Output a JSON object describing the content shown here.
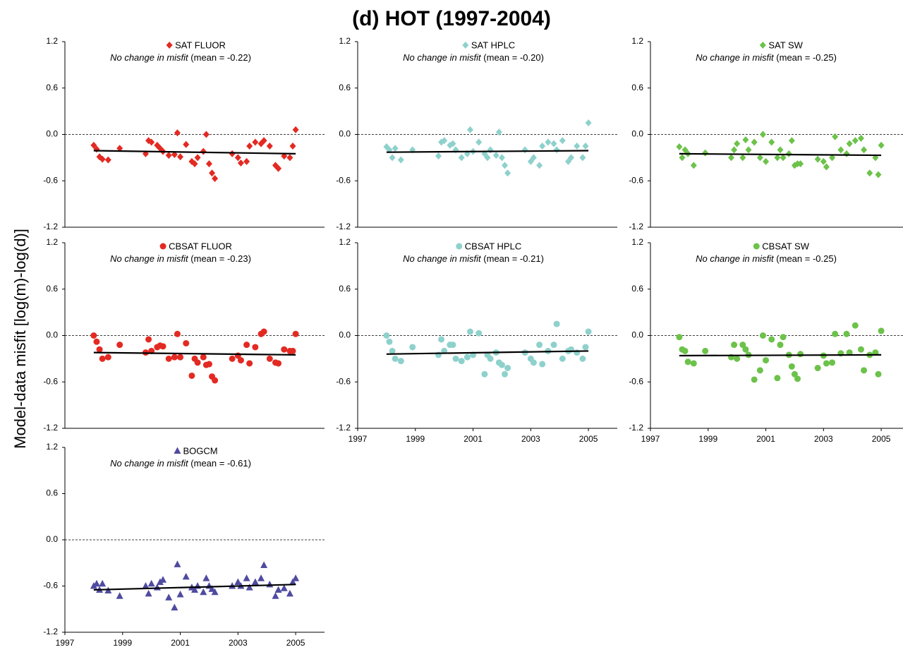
{
  "title": "(d) HOT (1997-2004)",
  "ylabel": "Model-data misfit [log(m)-log(d)]",
  "chart_data": [
    {
      "type": "scatter",
      "marker": "diamond",
      "annotation": "No change in misfit",
      "mean_label": "(mean = -0.22)",
      "xlim": [
        1997,
        2006
      ],
      "ylim": [
        -1.2,
        1.2
      ],
      "yticks": [
        1.2,
        0.6,
        {
          "value": 0,
          "label": "0.0"
        },
        -0.6,
        -1.2
      ],
      "zero_line": true,
      "x": [
        1998.0,
        1998.1,
        1998.2,
        1998.3,
        1998.5,
        1998.9,
        1999.8,
        1999.9,
        2000.0,
        2000.2,
        2000.3,
        2000.4,
        2000.6,
        2000.8,
        2000.9,
        2001.0,
        2001.2,
        2001.4,
        2001.5,
        2001.6,
        2001.8,
        2001.9,
        2002.0,
        2002.1,
        2002.2,
        2002.8,
        2003.0,
        2003.1,
        2003.3,
        2003.4,
        2003.6,
        2003.8,
        2003.9,
        2004.1,
        2004.3,
        2004.4,
        2004.6,
        2004.8,
        2004.9,
        2005.0
      ],
      "series": [
        {
          "name": "SAT FLUOR",
          "color": "#e32a22",
          "values": [
            -0.14,
            -0.19,
            -0.29,
            -0.32,
            -0.33,
            -0.18,
            -0.25,
            -0.08,
            -0.1,
            -0.14,
            -0.18,
            -0.22,
            -0.27,
            -0.26,
            0.02,
            -0.29,
            -0.13,
            -0.35,
            -0.38,
            -0.3,
            -0.22,
            0.0,
            -0.38,
            -0.5,
            -0.57,
            -0.25,
            -0.3,
            -0.37,
            -0.35,
            -0.15,
            -0.1,
            -0.12,
            -0.08,
            -0.15,
            -0.4,
            -0.44,
            -0.28,
            -0.3,
            -0.15,
            0.06
          ]
        }
      ],
      "trend": {
        "x": [
          1998,
          2005
        ],
        "values": [
          -0.21,
          -0.25
        ]
      }
    },
    {
      "type": "scatter",
      "marker": "diamond",
      "annotation": "No change in misfit",
      "mean_label": "(mean = -0.20)",
      "xlim": [
        1997,
        2006
      ],
      "ylim": [
        -1.2,
        1.2
      ],
      "yticks": [
        1.2,
        0.6,
        {
          "value": 0,
          "label": "0.0"
        },
        -0.6,
        -1.2
      ],
      "zero_line": true,
      "x": [
        1998.0,
        1998.1,
        1998.2,
        1998.3,
        1998.5,
        1998.9,
        1999.8,
        1999.9,
        2000.0,
        2000.2,
        2000.3,
        2000.4,
        2000.6,
        2000.8,
        2000.9,
        2001.0,
        2001.2,
        2001.4,
        2001.5,
        2001.6,
        2001.8,
        2001.9,
        2002.0,
        2002.1,
        2002.2,
        2002.8,
        2003.0,
        2003.1,
        2003.3,
        2003.4,
        2003.6,
        2003.8,
        2003.9,
        2004.1,
        2004.3,
        2004.4,
        2004.6,
        2004.8,
        2004.9,
        2005.0
      ],
      "series": [
        {
          "name": "SAT HPLC",
          "color": "#8ed1cc",
          "values": [
            -0.16,
            -0.2,
            -0.3,
            -0.18,
            -0.33,
            -0.2,
            -0.28,
            -0.1,
            -0.08,
            -0.14,
            -0.12,
            -0.2,
            -0.3,
            -0.25,
            0.06,
            -0.22,
            -0.1,
            -0.25,
            -0.3,
            -0.2,
            -0.27,
            0.03,
            -0.3,
            -0.4,
            -0.5,
            -0.2,
            -0.35,
            -0.3,
            -0.4,
            -0.15,
            -0.1,
            -0.12,
            -0.2,
            -0.08,
            -0.35,
            -0.3,
            -0.15,
            -0.3,
            -0.15,
            0.15
          ]
        }
      ],
      "trend": {
        "x": [
          1998,
          2005
        ],
        "values": [
          -0.23,
          -0.21
        ]
      }
    },
    {
      "type": "scatter",
      "marker": "diamond",
      "annotation": "No change in misfit",
      "mean_label": "(mean = -0.25)",
      "xlim": [
        1997,
        2006
      ],
      "ylim": [
        -1.2,
        1.2
      ],
      "yticks": [
        1.2,
        0.6,
        {
          "value": 0,
          "label": "0.0"
        },
        -0.6,
        -1.2
      ],
      "zero_line": true,
      "x": [
        1998.0,
        1998.1,
        1998.2,
        1998.3,
        1998.5,
        1998.9,
        1999.8,
        1999.9,
        2000.0,
        2000.2,
        2000.3,
        2000.4,
        2000.6,
        2000.8,
        2000.9,
        2001.0,
        2001.2,
        2001.4,
        2001.5,
        2001.6,
        2001.8,
        2001.9,
        2002.0,
        2002.1,
        2002.2,
        2002.8,
        2003.0,
        2003.1,
        2003.3,
        2003.4,
        2003.6,
        2003.8,
        2003.9,
        2004.1,
        2004.3,
        2004.4,
        2004.6,
        2004.8,
        2004.9,
        2005.0
      ],
      "series": [
        {
          "name": "SAT SW",
          "color": "#6cc24a",
          "values": [
            -0.16,
            -0.3,
            -0.2,
            -0.25,
            -0.4,
            -0.24,
            -0.3,
            -0.2,
            -0.12,
            -0.3,
            -0.07,
            -0.2,
            -0.1,
            -0.3,
            0.0,
            -0.35,
            -0.1,
            -0.3,
            -0.2,
            -0.3,
            -0.25,
            -0.08,
            -0.4,
            -0.38,
            -0.38,
            -0.32,
            -0.35,
            -0.42,
            -0.3,
            -0.03,
            -0.2,
            -0.25,
            -0.12,
            -0.08,
            -0.05,
            -0.2,
            -0.5,
            -0.3,
            -0.52,
            -0.14
          ]
        }
      ],
      "trend": {
        "x": [
          1998,
          2005
        ],
        "values": [
          -0.25,
          -0.27
        ]
      }
    },
    {
      "type": "scatter",
      "marker": "circle",
      "annotation": "No change in misfit",
      "mean_label": "(mean = -0.23)",
      "xlim": [
        1997,
        2006
      ],
      "ylim": [
        -1.2,
        1.2
      ],
      "yticks": [
        1.2,
        0.6,
        {
          "value": 0,
          "label": "0.0"
        },
        -0.6,
        -1.2
      ],
      "zero_line": true,
      "x": [
        1998.0,
        1998.1,
        1998.2,
        1998.3,
        1998.5,
        1998.9,
        1999.8,
        1999.9,
        2000.0,
        2000.2,
        2000.3,
        2000.4,
        2000.6,
        2000.8,
        2000.9,
        2001.0,
        2001.2,
        2001.4,
        2001.5,
        2001.6,
        2001.8,
        2001.9,
        2002.0,
        2002.1,
        2002.2,
        2002.8,
        2003.0,
        2003.1,
        2003.3,
        2003.4,
        2003.6,
        2003.8,
        2003.9,
        2004.1,
        2004.3,
        2004.4,
        2004.6,
        2004.8,
        2004.9,
        2005.0
      ],
      "series": [
        {
          "name": "CBSAT FLUOR",
          "color": "#e32a22",
          "values": [
            0.0,
            -0.08,
            -0.18,
            -0.3,
            -0.28,
            -0.12,
            -0.22,
            -0.05,
            -0.2,
            -0.15,
            -0.13,
            -0.14,
            -0.3,
            -0.28,
            0.02,
            -0.28,
            -0.1,
            -0.52,
            -0.3,
            -0.35,
            -0.28,
            -0.38,
            -0.37,
            -0.53,
            -0.58,
            -0.3,
            -0.26,
            -0.32,
            -0.12,
            -0.36,
            -0.15,
            0.02,
            0.05,
            -0.3,
            -0.35,
            -0.36,
            -0.18,
            -0.2,
            -0.2,
            0.02
          ]
        }
      ],
      "trend": {
        "x": [
          1998,
          2005
        ],
        "values": [
          -0.22,
          -0.25
        ]
      }
    },
    {
      "type": "scatter",
      "marker": "circle",
      "annotation": "No change in misfit",
      "mean_label": "(mean = -0.21)",
      "xlim": [
        1997,
        2006
      ],
      "ylim": [
        -1.2,
        1.2
      ],
      "yticks": [
        1.2,
        0.6,
        {
          "value": 0,
          "label": "0.0"
        },
        -0.6,
        -1.2
      ],
      "zero_line": true,
      "xticks": [
        1997,
        1999,
        2001,
        2003,
        2005
      ],
      "x": [
        1998.0,
        1998.1,
        1998.2,
        1998.3,
        1998.5,
        1998.9,
        1999.8,
        1999.9,
        2000.0,
        2000.2,
        2000.3,
        2000.4,
        2000.6,
        2000.8,
        2000.9,
        2001.0,
        2001.2,
        2001.4,
        2001.5,
        2001.6,
        2001.8,
        2001.9,
        2002.0,
        2002.1,
        2002.2,
        2002.8,
        2003.0,
        2003.1,
        2003.3,
        2003.4,
        2003.6,
        2003.8,
        2003.9,
        2004.1,
        2004.3,
        2004.4,
        2004.6,
        2004.8,
        2004.9,
        2005.0
      ],
      "series": [
        {
          "name": "CBSAT HPLC",
          "color": "#8ed1cc",
          "values": [
            0.0,
            -0.08,
            -0.2,
            -0.3,
            -0.33,
            -0.15,
            -0.25,
            -0.05,
            -0.2,
            -0.12,
            -0.12,
            -0.3,
            -0.33,
            -0.28,
            0.05,
            -0.25,
            0.03,
            -0.5,
            -0.25,
            -0.3,
            -0.22,
            -0.35,
            -0.38,
            -0.5,
            -0.42,
            -0.22,
            -0.3,
            -0.35,
            -0.12,
            -0.37,
            -0.2,
            -0.12,
            0.15,
            -0.3,
            -0.2,
            -0.18,
            -0.22,
            -0.3,
            -0.15,
            0.05
          ]
        }
      ],
      "trend": {
        "x": [
          1998,
          2005
        ],
        "values": [
          -0.24,
          -0.2
        ]
      }
    },
    {
      "type": "scatter",
      "marker": "circle",
      "annotation": "No change in misfit",
      "mean_label": "(mean = -0.25)",
      "xlim": [
        1997,
        2006
      ],
      "ylim": [
        -1.2,
        1.2
      ],
      "yticks": [
        1.2,
        0.6,
        {
          "value": 0,
          "label": "0.0"
        },
        -0.6,
        -1.2
      ],
      "zero_line": true,
      "xticks": [
        1997,
        1999,
        2001,
        2003,
        2005
      ],
      "x": [
        1998.0,
        1998.1,
        1998.2,
        1998.3,
        1998.5,
        1998.9,
        1999.8,
        1999.9,
        2000.0,
        2000.2,
        2000.3,
        2000.4,
        2000.6,
        2000.8,
        2000.9,
        2001.0,
        2001.2,
        2001.4,
        2001.5,
        2001.6,
        2001.8,
        2001.9,
        2002.0,
        2002.1,
        2002.2,
        2002.8,
        2003.0,
        2003.1,
        2003.3,
        2003.4,
        2003.6,
        2003.8,
        2003.9,
        2004.1,
        2004.3,
        2004.4,
        2004.6,
        2004.8,
        2004.9,
        2005.0
      ],
      "series": [
        {
          "name": "CBSAT SW",
          "color": "#6cc24a",
          "values": [
            -0.02,
            -0.18,
            -0.2,
            -0.34,
            -0.36,
            -0.2,
            -0.28,
            -0.12,
            -0.3,
            -0.12,
            -0.18,
            -0.25,
            -0.57,
            -0.45,
            0.0,
            -0.32,
            -0.05,
            -0.55,
            -0.12,
            -0.02,
            -0.25,
            -0.4,
            -0.5,
            -0.56,
            -0.24,
            -0.42,
            -0.26,
            -0.36,
            -0.35,
            0.02,
            -0.23,
            0.02,
            -0.22,
            0.13,
            -0.18,
            -0.45,
            -0.25,
            -0.22,
            -0.5,
            0.06
          ]
        }
      ],
      "trend": {
        "x": [
          1998,
          2005
        ],
        "values": [
          -0.26,
          -0.25
        ]
      }
    },
    {
      "type": "scatter",
      "marker": "triangle",
      "annotation": "No change in misfit",
      "mean_label": "(mean = -0.61)",
      "xlim": [
        1997,
        2006
      ],
      "ylim": [
        -1.2,
        1.2
      ],
      "yticks": [
        1.2,
        0.6,
        {
          "value": 0,
          "label": "0.0"
        },
        -0.6,
        -1.2
      ],
      "zero_line": true,
      "xticks": [
        1997,
        1999,
        2001,
        2003,
        2005
      ],
      "x": [
        1998.0,
        1998.1,
        1998.2,
        1998.3,
        1998.5,
        1998.9,
        1999.8,
        1999.9,
        2000.0,
        2000.2,
        2000.3,
        2000.4,
        2000.6,
        2000.8,
        2000.9,
        2001.0,
        2001.2,
        2001.4,
        2001.5,
        2001.6,
        2001.8,
        2001.9,
        2002.0,
        2002.1,
        2002.2,
        2002.8,
        2003.0,
        2003.1,
        2003.3,
        2003.4,
        2003.6,
        2003.8,
        2003.9,
        2004.1,
        2004.3,
        2004.4,
        2004.6,
        2004.8,
        2004.9,
        2005.0
      ],
      "series": [
        {
          "name": "BOGCM",
          "color": "#4f4ba0",
          "values": [
            -0.6,
            -0.57,
            -0.65,
            -0.57,
            -0.66,
            -0.73,
            -0.6,
            -0.7,
            -0.57,
            -0.62,
            -0.55,
            -0.52,
            -0.75,
            -0.88,
            -0.32,
            -0.71,
            -0.48,
            -0.62,
            -0.65,
            -0.6,
            -0.68,
            -0.5,
            -0.6,
            -0.64,
            -0.68,
            -0.6,
            -0.55,
            -0.6,
            -0.5,
            -0.62,
            -0.55,
            -0.5,
            -0.33,
            -0.58,
            -0.73,
            -0.65,
            -0.63,
            -0.7,
            -0.55,
            -0.5
          ]
        }
      ],
      "trend": {
        "x": [
          1998,
          2005
        ],
        "values": [
          -0.65,
          -0.58
        ]
      }
    }
  ]
}
